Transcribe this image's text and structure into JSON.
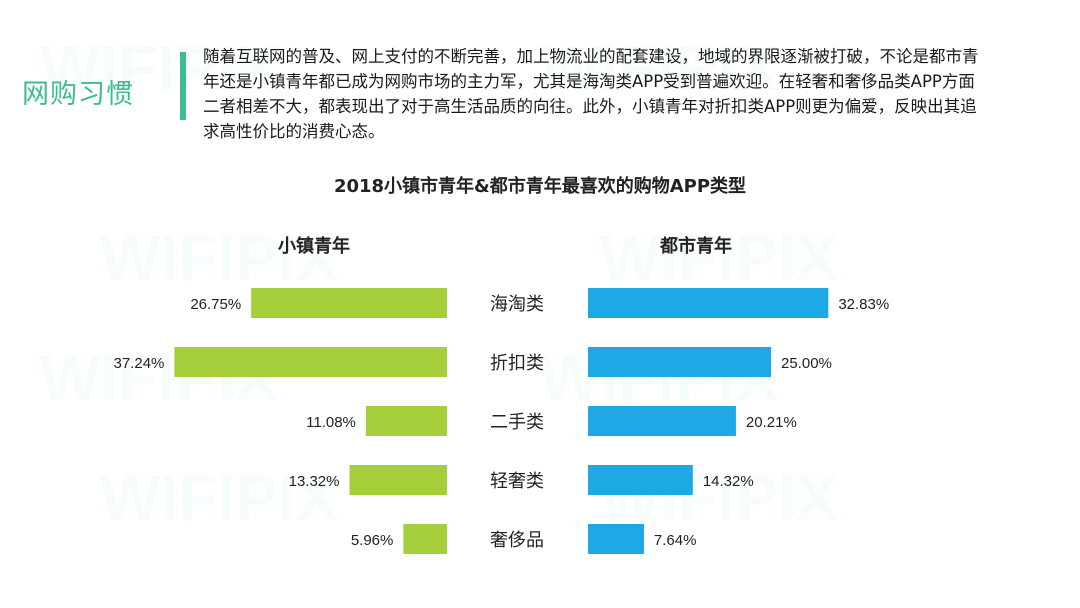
{
  "heading": "网购习惯",
  "intro": "随着互联网的普及、网上支付的不断完善，加上物流业的配套建设，地域的界限逐渐被打破，不论是都市青年还是小镇青年都已成为网购市场的主力军，尤其是海淘类APP受到普遍欢迎。在轻奢和奢侈品类APP方面二者相差不大，都表现出了对于高生活品质的向往。此外，小镇青年对折扣类APP则更为偏爱，反映出其追求高性价比的消费心态。",
  "watermark": "WIFIPIX",
  "colors": {
    "accent": "#3dbe8c",
    "left_bar": "#a5cf3a",
    "right_bar": "#1ea8e6"
  },
  "chart_data": {
    "type": "bar",
    "title": "2018小镇市青年&都市青年最喜欢的购物APP类型",
    "categories": [
      "海淘类",
      "折扣类",
      "二手类",
      "轻奢类",
      "奢侈品"
    ],
    "series": [
      {
        "name": "小镇青年",
        "values": [
          26.75,
          37.24,
          11.08,
          13.32,
          5.96
        ],
        "labels": [
          "26.75%",
          "37.24%",
          "11.08%",
          "13.32%",
          "5.96%"
        ]
      },
      {
        "name": "都市青年",
        "values": [
          32.83,
          25.0,
          20.21,
          14.32,
          7.64
        ],
        "labels": [
          "32.83%",
          "25.00%",
          "20.21%",
          "14.32%",
          "7.64%"
        ]
      }
    ]
  }
}
